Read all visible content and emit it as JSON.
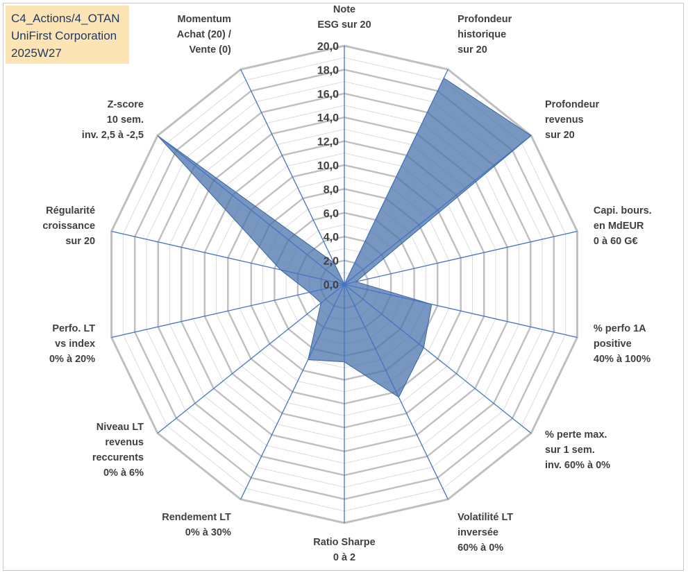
{
  "title_box": {
    "line1": "C4_Actions/4_OTAN",
    "line2": "UniFirst Corporation",
    "line3": "2025W27"
  },
  "colors": {
    "grid": "#bfbfbf",
    "spoke": "#4472c4",
    "fill": "#4a74ab",
    "title_bg": "#fce4b4",
    "title_text": "#1f3864"
  },
  "chart_data": {
    "type": "radar",
    "rlim": [
      0,
      20
    ],
    "grid": true,
    "ticks": [
      "0,0",
      "2,0",
      "4,0",
      "6,0",
      "8,0",
      "10,0",
      "12,0",
      "14,0",
      "16,0",
      "18,0",
      "20,0"
    ],
    "axes": [
      [
        "Note",
        "ESG sur 20"
      ],
      [
        "Profondeur",
        "historique",
        "sur 20"
      ],
      [
        "Profondeur",
        "revenus",
        "sur 20"
      ],
      [
        "Capi. bours.",
        "en MdEUR",
        "0 à 60 G€"
      ],
      [
        "% perfo 1A",
        "positive",
        "40% à 100%"
      ],
      [
        "% perte max.",
        "sur 1 sem.",
        "inv. 60% à 0%"
      ],
      [
        "Volatilité LT",
        "inversée",
        "60% à 0%"
      ],
      [
        "Ratio Sharpe",
        "0 à 2"
      ],
      [
        "Rendement LT",
        "0% à 30%"
      ],
      [
        "Niveau LT",
        "revenus",
        "reccurents",
        "0% à 6%"
      ],
      [
        "Perfo. LT",
        "vs index",
        "0% à 20%"
      ],
      [
        "Régularité",
        "croissance",
        "sur 20"
      ],
      [
        "Z-score",
        "10 sem.",
        "inv. 2,5 à -2,5"
      ],
      [
        "Momentum",
        "Achat (20) /",
        "Vente (0)"
      ]
    ],
    "values": [
      0.0,
      19.2,
      20.0,
      1.0,
      7.5,
      8.5,
      10.5,
      6.5,
      7.0,
      2.5,
      3.0,
      5.5,
      20.0,
      2.0
    ]
  }
}
